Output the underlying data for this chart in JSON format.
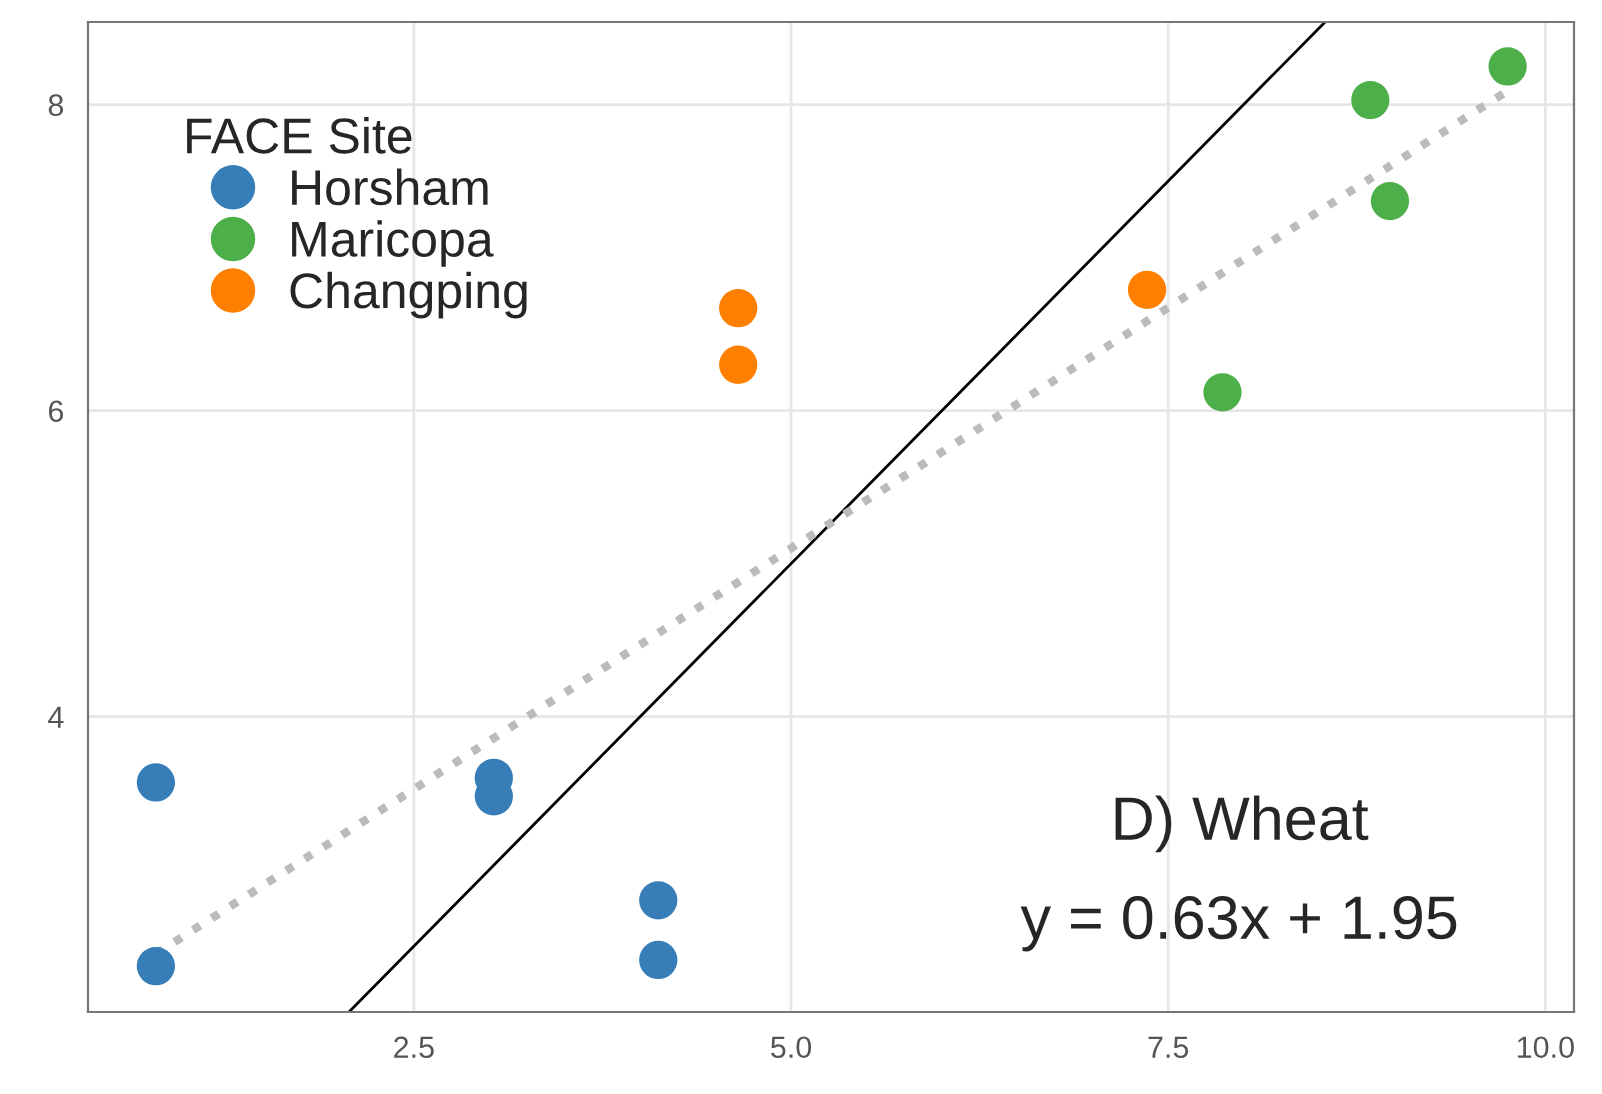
{
  "chart_data": {
    "type": "scatter",
    "legend_title": "FACE Site",
    "series": [
      {
        "name": "Horsham",
        "marker": "circle",
        "color": "#377eb8",
        "x": [
          0.79,
          0.79,
          3.03,
          3.03,
          4.12,
          4.12
        ],
        "values": [
          3.57,
          2.37,
          3.6,
          3.48,
          2.8,
          2.41
        ]
      },
      {
        "name": "Maricopa",
        "marker": "circle",
        "color": "#4daf4a",
        "x": [
          8.84,
          9.75,
          8.97,
          7.86
        ],
        "values": [
          8.03,
          8.25,
          7.37,
          6.12
        ]
      },
      {
        "name": "Changping",
        "marker": "circle",
        "color": "#ff7f00",
        "x": [
          4.65,
          4.65,
          7.36
        ],
        "values": [
          6.67,
          6.3,
          6.79
        ]
      },
      {
        "type": "line",
        "color": "#000000",
        "line_style": "solid",
        "x": [
          2.07,
          8.54
        ],
        "values": [
          2.07,
          8.54
        ]
      },
      {
        "type": "line",
        "color": "#bbbbbb",
        "line_style": "dotted",
        "x": [
          0.79,
          9.75
        ],
        "values": [
          2.45,
          8.09
        ]
      }
    ],
    "annotations": [
      "D) Wheat",
      "y = 0.63x + 1.95"
    ],
    "xlim": [
      0.34,
      10.19
    ],
    "ylim": [
      2.07,
      8.54
    ],
    "xticks": [
      {
        "value": 2.5,
        "label": "2.5"
      },
      {
        "value": 5.0,
        "label": "5.0"
      },
      {
        "value": 7.5,
        "label": "7.5"
      },
      {
        "value": 10.0,
        "label": "10.0"
      }
    ],
    "yticks": [
      4,
      6,
      8
    ],
    "grid": true,
    "legend": "top left"
  }
}
